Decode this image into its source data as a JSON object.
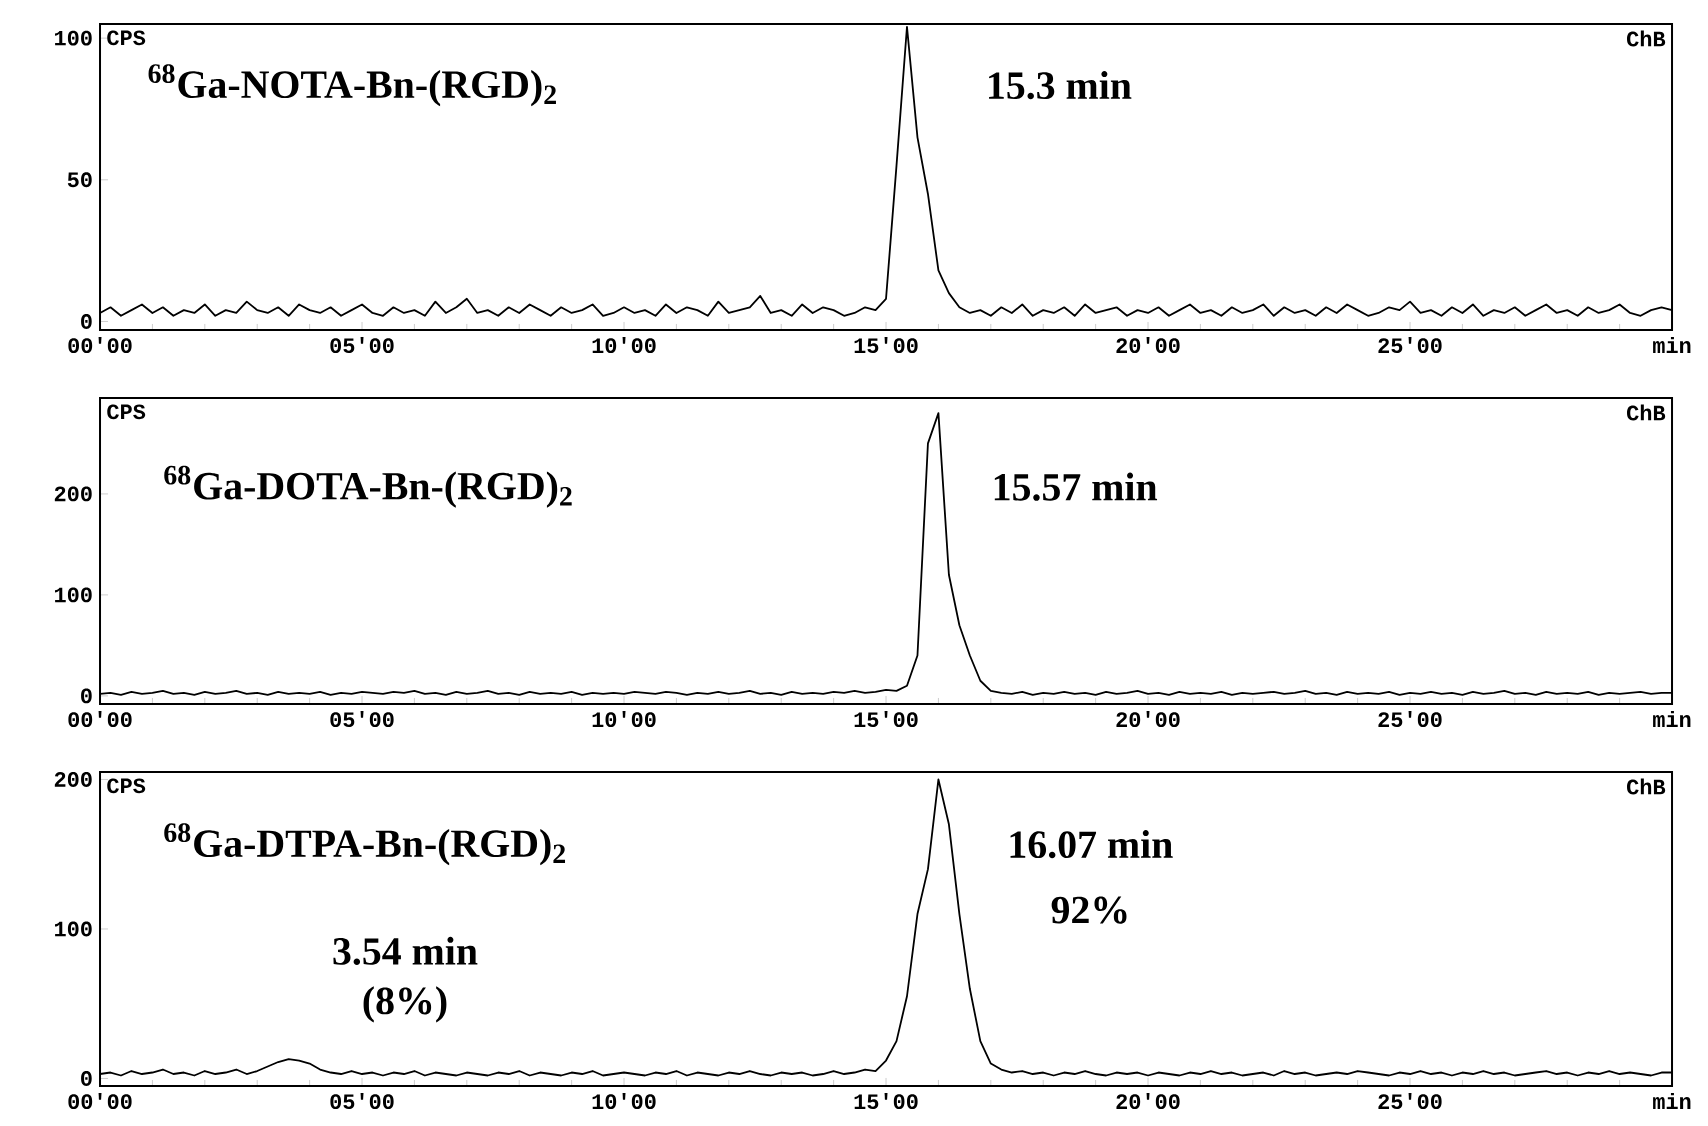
{
  "chart_data": [
    {
      "type": "line",
      "ylabel": "CPS",
      "ylim": [
        -3,
        105
      ],
      "yticks": [
        0,
        50,
        100
      ],
      "annotations": [
        "$^{68}$Ga-NOTA-Bn-(RGD)$_{2}$",
        "15.3 min",
        "ChB"
      ],
      "categories": [
        "00'00",
        null,
        null,
        null,
        null,
        null,
        null,
        null,
        null,
        null,
        null,
        null,
        null,
        null,
        null,
        null,
        null,
        null,
        null,
        null,
        null,
        null,
        null,
        null,
        null,
        "05'00",
        null,
        null,
        null,
        null,
        null,
        null,
        null,
        null,
        null,
        null,
        null,
        null,
        null,
        null,
        null,
        null,
        null,
        null,
        null,
        null,
        null,
        null,
        null,
        null,
        "10'00",
        null,
        null,
        null,
        null,
        null,
        null,
        null,
        null,
        null,
        null,
        null,
        null,
        null,
        null,
        null,
        null,
        null,
        null,
        null,
        null,
        null,
        null,
        null,
        null,
        "15'00",
        null,
        null,
        null,
        null,
        null,
        null,
        null,
        null,
        null,
        null,
        null,
        null,
        null,
        null,
        null,
        null,
        null,
        null,
        null,
        null,
        null,
        null,
        null,
        null,
        "20'00",
        null,
        null,
        null,
        null,
        null,
        null,
        null,
        null,
        null,
        null,
        null,
        null,
        null,
        null,
        null,
        null,
        null,
        null,
        null,
        null,
        null,
        null,
        null,
        null,
        "25'00",
        null,
        null,
        null,
        null,
        null,
        null,
        null,
        null,
        null,
        null,
        null,
        null,
        null,
        null,
        null,
        null,
        null,
        null,
        null,
        null,
        null,
        null,
        null,
        null,
        "min"
      ],
      "series": [
        {
          "color": "#000000",
          "values": [
            3,
            5,
            2,
            4,
            6,
            3,
            5,
            2,
            4,
            3,
            6,
            2,
            4,
            3,
            7,
            4,
            3,
            5,
            2,
            6,
            4,
            3,
            5,
            2,
            4,
            6,
            3,
            2,
            5,
            3,
            4,
            2,
            7,
            3,
            5,
            8,
            3,
            4,
            2,
            5,
            3,
            6,
            4,
            2,
            5,
            3,
            4,
            6,
            2,
            3,
            5,
            3,
            4,
            2,
            6,
            3,
            5,
            4,
            2,
            7,
            3,
            4,
            5,
            9,
            3,
            4,
            2,
            6,
            3,
            5,
            4,
            2,
            3,
            5,
            4,
            8,
            55,
            104,
            65,
            45,
            18,
            10,
            5,
            3,
            4,
            2,
            5,
            3,
            6,
            2,
            4,
            3,
            5,
            2,
            6,
            3,
            4,
            5,
            2,
            4,
            3,
            5,
            2,
            4,
            6,
            3,
            4,
            2,
            5,
            3,
            4,
            6,
            2,
            5,
            3,
            4,
            2,
            5,
            3,
            6,
            4,
            2,
            3,
            5,
            4,
            7,
            3,
            4,
            2,
            5,
            3,
            6,
            2,
            4,
            3,
            5,
            2,
            4,
            6,
            3,
            4,
            2,
            5,
            3,
            4,
            6,
            3,
            2,
            4,
            5,
            4
          ]
        }
      ]
    },
    {
      "type": "line",
      "ylabel": "CPS",
      "ylim": [
        -8,
        295
      ],
      "yticks": [
        0,
        100,
        200
      ],
      "annotations": [
        "$^{68}$Ga-DOTA-Bn-(RGD)$_{2}$",
        "15.57 min",
        "ChB"
      ],
      "categories": [
        "00'00",
        null,
        null,
        null,
        null,
        null,
        null,
        null,
        null,
        null,
        null,
        null,
        null,
        null,
        null,
        null,
        null,
        null,
        null,
        null,
        null,
        null,
        null,
        null,
        null,
        "05'00",
        null,
        null,
        null,
        null,
        null,
        null,
        null,
        null,
        null,
        null,
        null,
        null,
        null,
        null,
        null,
        null,
        null,
        null,
        null,
        null,
        null,
        null,
        null,
        null,
        "10'00",
        null,
        null,
        null,
        null,
        null,
        null,
        null,
        null,
        null,
        null,
        null,
        null,
        null,
        null,
        null,
        null,
        null,
        null,
        null,
        null,
        null,
        null,
        null,
        null,
        "15'00",
        null,
        null,
        null,
        null,
        null,
        null,
        null,
        null,
        null,
        null,
        null,
        null,
        null,
        null,
        null,
        null,
        null,
        null,
        null,
        null,
        null,
        null,
        null,
        null,
        "20'00",
        null,
        null,
        null,
        null,
        null,
        null,
        null,
        null,
        null,
        null,
        null,
        null,
        null,
        null,
        null,
        null,
        null,
        null,
        null,
        null,
        null,
        null,
        null,
        null,
        "25'00",
        null,
        null,
        null,
        null,
        null,
        null,
        null,
        null,
        null,
        null,
        null,
        null,
        null,
        null,
        null,
        null,
        null,
        null,
        null,
        null,
        null,
        null,
        null,
        null,
        "min"
      ],
      "series": [
        {
          "color": "#000000",
          "values": [
            2,
            3,
            1,
            4,
            2,
            3,
            5,
            2,
            3,
            1,
            4,
            2,
            3,
            5,
            2,
            3,
            1,
            4,
            2,
            3,
            2,
            4,
            1,
            3,
            2,
            4,
            3,
            2,
            4,
            3,
            5,
            2,
            3,
            1,
            4,
            2,
            3,
            5,
            2,
            3,
            1,
            4,
            2,
            3,
            2,
            4,
            1,
            3,
            2,
            3,
            2,
            4,
            3,
            2,
            4,
            3,
            1,
            3,
            2,
            4,
            2,
            3,
            5,
            2,
            3,
            1,
            4,
            2,
            3,
            2,
            4,
            3,
            5,
            3,
            4,
            6,
            5,
            10,
            40,
            250,
            280,
            120,
            70,
            40,
            15,
            5,
            3,
            2,
            4,
            1,
            3,
            2,
            4,
            2,
            3,
            1,
            4,
            2,
            3,
            5,
            2,
            3,
            1,
            4,
            2,
            3,
            2,
            4,
            1,
            3,
            2,
            3,
            4,
            2,
            3,
            5,
            2,
            3,
            1,
            4,
            2,
            3,
            2,
            4,
            1,
            3,
            2,
            4,
            2,
            3,
            1,
            4,
            2,
            3,
            5,
            2,
            3,
            1,
            4,
            2,
            3,
            2,
            4,
            1,
            3,
            2,
            3,
            4,
            2,
            3,
            3
          ]
        }
      ]
    },
    {
      "type": "line",
      "ylabel": "CPS",
      "ylim": [
        -5,
        205
      ],
      "yticks": [
        0,
        100,
        200
      ],
      "annotations": [
        "$^{68}$Ga-DTPA-Bn-(RGD)$_{2}$",
        "3.54 min",
        "(8%)",
        "16.07 min",
        "92%",
        "ChB"
      ],
      "categories": [
        "00'00",
        null,
        null,
        null,
        null,
        null,
        null,
        null,
        null,
        null,
        null,
        null,
        null,
        null,
        null,
        null,
        null,
        null,
        null,
        null,
        null,
        null,
        null,
        null,
        null,
        "05'00",
        null,
        null,
        null,
        null,
        null,
        null,
        null,
        null,
        null,
        null,
        null,
        null,
        null,
        null,
        null,
        null,
        null,
        null,
        null,
        null,
        null,
        null,
        null,
        null,
        "10'00",
        null,
        null,
        null,
        null,
        null,
        null,
        null,
        null,
        null,
        null,
        null,
        null,
        null,
        null,
        null,
        null,
        null,
        null,
        null,
        null,
        null,
        null,
        null,
        null,
        "15'00",
        null,
        null,
        null,
        null,
        null,
        null,
        null,
        null,
        null,
        null,
        null,
        null,
        null,
        null,
        null,
        null,
        null,
        null,
        null,
        null,
        null,
        null,
        null,
        null,
        "20'00",
        null,
        null,
        null,
        null,
        null,
        null,
        null,
        null,
        null,
        null,
        null,
        null,
        null,
        null,
        null,
        null,
        null,
        null,
        null,
        null,
        null,
        null,
        null,
        null,
        "25'00",
        null,
        null,
        null,
        null,
        null,
        null,
        null,
        null,
        null,
        null,
        null,
        null,
        null,
        null,
        null,
        null,
        null,
        null,
        null,
        null,
        null,
        null,
        null,
        null,
        "min"
      ],
      "series": [
        {
          "color": "#000000",
          "values": [
            3,
            4,
            2,
            5,
            3,
            4,
            6,
            3,
            4,
            2,
            5,
            3,
            4,
            6,
            3,
            5,
            8,
            11,
            13,
            12,
            10,
            6,
            4,
            3,
            5,
            3,
            4,
            2,
            4,
            3,
            5,
            2,
            4,
            3,
            2,
            4,
            3,
            2,
            4,
            3,
            5,
            2,
            4,
            3,
            2,
            4,
            3,
            5,
            2,
            3,
            4,
            3,
            2,
            4,
            3,
            5,
            2,
            4,
            3,
            2,
            4,
            3,
            5,
            3,
            2,
            4,
            3,
            4,
            2,
            3,
            5,
            3,
            4,
            6,
            5,
            12,
            25,
            55,
            110,
            140,
            200,
            170,
            110,
            60,
            25,
            10,
            6,
            4,
            5,
            3,
            4,
            2,
            4,
            3,
            5,
            3,
            2,
            4,
            3,
            4,
            2,
            4,
            3,
            2,
            4,
            3,
            5,
            3,
            4,
            2,
            3,
            4,
            2,
            5,
            3,
            4,
            2,
            3,
            4,
            3,
            5,
            4,
            3,
            2,
            4,
            3,
            5,
            3,
            4,
            2,
            4,
            3,
            5,
            3,
            4,
            2,
            3,
            4,
            5,
            3,
            4,
            2,
            4,
            3,
            5,
            3,
            4,
            3,
            2,
            4,
            4
          ]
        }
      ]
    }
  ]
}
